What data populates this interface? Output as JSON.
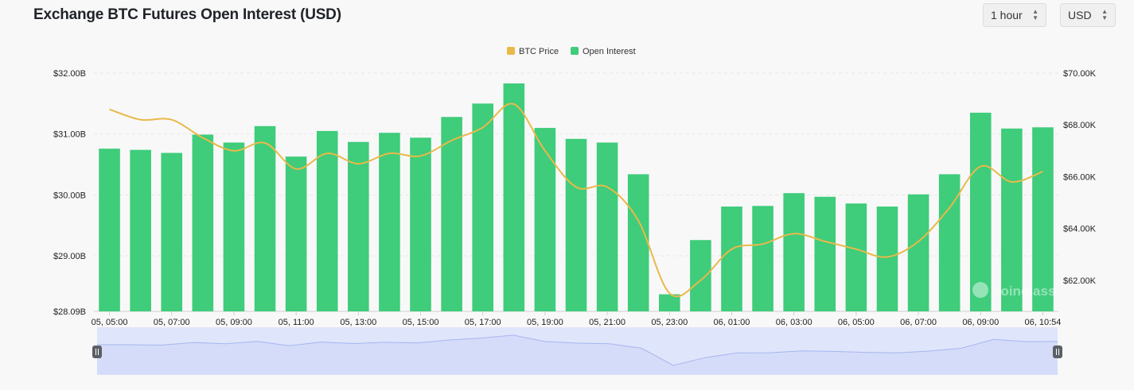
{
  "header": {
    "title": "Exchange BTC Futures Open Interest (USD)"
  },
  "controls": {
    "interval": "1 hour",
    "currency": "USD"
  },
  "colors": {
    "bar": "#3fcc7b",
    "price_line": "#e9b949",
    "navigator_fill": "#dfe5fb",
    "navigator_line": "#a8b6ef"
  },
  "watermark": "coinglass",
  "chart_data": {
    "type": "bar",
    "title": "Exchange BTC Futures Open Interest (USD)",
    "legend": {
      "position": "top-center",
      "items": [
        "BTC Price",
        "Open Interest"
      ]
    },
    "x_tick_labels": [
      "05, 05:00",
      "05, 07:00",
      "05, 09:00",
      "05, 11:00",
      "05, 13:00",
      "05, 15:00",
      "05, 17:00",
      "05, 19:00",
      "05, 21:00",
      "05, 23:00",
      "06, 01:00",
      "06, 03:00",
      "06, 05:00",
      "06, 07:00",
      "06, 09:00",
      "06, 10:54"
    ],
    "categories": [
      "05, 05:00",
      "05, 06:00",
      "05, 07:00",
      "05, 08:00",
      "05, 09:00",
      "05, 10:00",
      "05, 11:00",
      "05, 12:00",
      "05, 13:00",
      "05, 14:00",
      "05, 15:00",
      "05, 16:00",
      "05, 17:00",
      "05, 18:00",
      "05, 19:00",
      "05, 20:00",
      "05, 21:00",
      "05, 22:00",
      "05, 23:00",
      "06, 00:00",
      "06, 01:00",
      "06, 02:00",
      "06, 03:00",
      "06, 04:00",
      "06, 05:00",
      "06, 06:00",
      "06, 07:00",
      "06, 08:00",
      "06, 09:00",
      "06, 10:00",
      "06, 10:54"
    ],
    "left_axis": {
      "ticks": [
        "$28.09B",
        "$29.00B",
        "$30.00B",
        "$31.00B",
        "$32.00B"
      ],
      "tick_values": [
        28.09,
        29,
        30,
        31,
        32
      ],
      "range": [
        28.09,
        32.0
      ],
      "unit": "billion USD"
    },
    "right_axis": {
      "ticks": [
        "$62.00K",
        "$64.00K",
        "$66.00K",
        "$68.00K",
        "$70.00K"
      ],
      "tick_values": [
        62,
        64,
        66,
        68,
        70
      ],
      "range": [
        60.8,
        70.0
      ],
      "unit": "thousand USD"
    },
    "grid": true,
    "series": [
      {
        "name": "Open Interest",
        "type": "bar",
        "axis": "left",
        "values": [
          30.76,
          30.74,
          30.69,
          30.99,
          30.86,
          31.13,
          30.63,
          31.05,
          30.87,
          31.02,
          30.94,
          31.28,
          31.5,
          31.83,
          31.1,
          30.92,
          30.86,
          30.34,
          28.37,
          29.26,
          29.81,
          29.82,
          30.03,
          29.97,
          29.86,
          29.81,
          30.01,
          30.34,
          31.35,
          31.09,
          31.11
        ]
      },
      {
        "name": "BTC Price",
        "type": "line",
        "axis": "right",
        "values": [
          68.6,
          68.2,
          68.2,
          67.5,
          67.0,
          67.3,
          66.3,
          66.9,
          66.5,
          66.9,
          66.8,
          67.4,
          67.9,
          68.8,
          67.0,
          65.6,
          65.6,
          64.3,
          61.5,
          62.0,
          63.2,
          63.4,
          63.8,
          63.5,
          63.2,
          62.9,
          63.5,
          64.8,
          66.4,
          65.8,
          66.2
        ]
      }
    ],
    "navigator": {
      "values": [
        30.76,
        30.74,
        30.69,
        30.99,
        30.86,
        31.13,
        30.63,
        31.05,
        30.87,
        31.02,
        30.94,
        31.28,
        31.5,
        31.83,
        31.1,
        30.92,
        30.86,
        30.34,
        28.37,
        29.26,
        29.81,
        29.82,
        30.03,
        29.97,
        29.86,
        29.81,
        30.01,
        30.34,
        31.35,
        31.09,
        31.11
      ]
    }
  }
}
